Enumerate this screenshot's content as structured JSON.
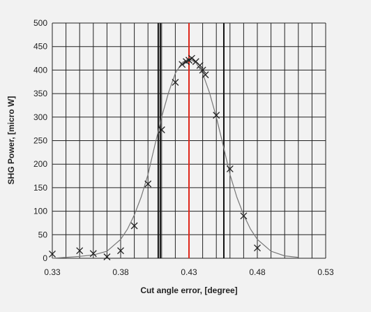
{
  "chart_data": {
    "type": "scatter",
    "xlabel": "Cut angle error, [degree]",
    "ylabel": "SHG Power, [micro W]",
    "xlim": [
      0.33,
      0.53
    ],
    "ylim": [
      0,
      500
    ],
    "x_ticks": [
      "0.33",
      "0.38",
      "0.43",
      "0.48",
      "0.53"
    ],
    "y_ticks": [
      "0",
      "50",
      "100",
      "150",
      "200",
      "250",
      "300",
      "350",
      "400",
      "450",
      "500"
    ],
    "grid": true,
    "minor_x_step": 0.01,
    "colors": {
      "grid": "#222222",
      "curve": "#777777",
      "marker": "#222222",
      "red_line": "#e0261a",
      "background": "#f2f2f2"
    },
    "vertical_lines": [
      {
        "x": 0.4075,
        "color": "#111111"
      },
      {
        "x": 0.409,
        "color": "#111111"
      },
      {
        "x": 0.43,
        "color": "#e0261a"
      },
      {
        "x": 0.4555,
        "color": "#111111"
      }
    ],
    "series": [
      {
        "type": "scatter",
        "marker": "x",
        "x": [
          0.33,
          0.35,
          0.36,
          0.37,
          0.38,
          0.39,
          0.4,
          0.41,
          0.42,
          0.425,
          0.428,
          0.43,
          0.432,
          0.435,
          0.438,
          0.44,
          0.442,
          0.45,
          0.46,
          0.47,
          0.48
        ],
        "y": [
          9,
          16,
          10,
          3,
          16,
          69,
          158,
          273,
          374,
          412,
          418,
          421,
          425,
          418,
          410,
          400,
          390,
          304,
          190,
          90,
          22
        ]
      },
      {
        "type": "line",
        "x": [
          0.33,
          0.34,
          0.35,
          0.36,
          0.37,
          0.38,
          0.385,
          0.39,
          0.395,
          0.4,
          0.405,
          0.41,
          0.415,
          0.42,
          0.425,
          0.43,
          0.435,
          0.44,
          0.445,
          0.45,
          0.455,
          0.46,
          0.465,
          0.47,
          0.475,
          0.48,
          0.49,
          0.5,
          0.51
        ],
        "y": [
          0,
          2,
          4,
          7,
          15,
          40,
          62,
          92,
          130,
          178,
          240,
          300,
          352,
          393,
          416,
          424,
          416,
          393,
          352,
          300,
          240,
          178,
          130,
          92,
          62,
          40,
          15,
          5,
          2
        ]
      }
    ]
  }
}
